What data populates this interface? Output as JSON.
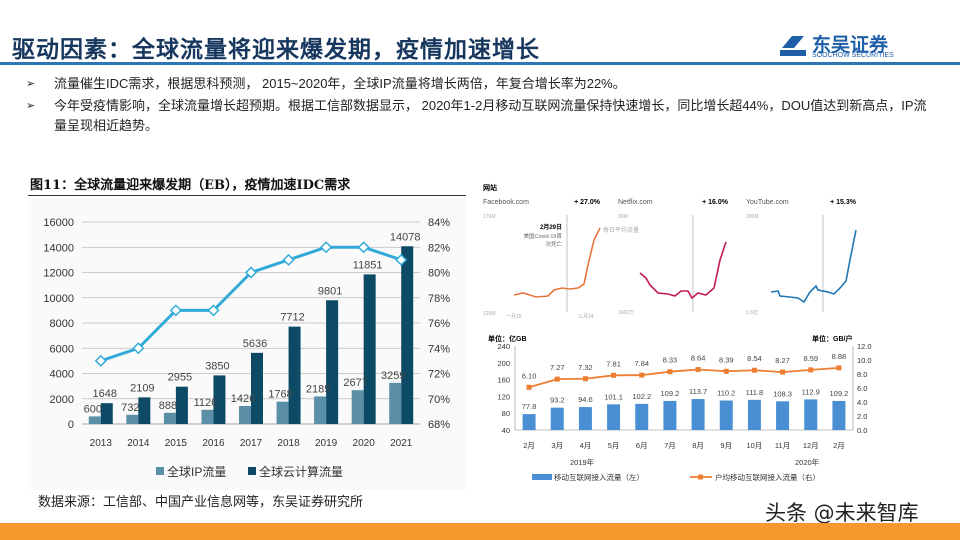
{
  "header": {
    "title": "驱动因素：全球流量将迎来爆发期，疫情加速增长",
    "logo": {
      "cn": "东吴证券",
      "en": "SOOCHOW SECURITIES",
      "mark": "SCS"
    }
  },
  "bullets": [
    {
      "icon": "arrow-bullet-icon",
      "text": "流量催生IDC需求，根据思科预测， 2015~2020年，全球IP流量将增长两倍，年复合增长率为22%。"
    },
    {
      "icon": "arrow-bullet-icon",
      "text": "今年受疫情影响，全球流量增长超预期。根据工信部数据显示， 2020年1-2月移动互联网流量保持快速增长，同比增长超44%，DOU值达到新高点，IP流量呈现相近趋势。"
    }
  ],
  "figure_caption": "图11：全球流量迎来爆发期（EB），疫情加速IDC需求",
  "source": "数据来源：工信部、中国产业信息网等，东吴证券研究所",
  "watermark": "头条 @未来智库",
  "colors": {
    "title": "#17375e",
    "rule": "#2e75b6",
    "footer": "#f7982f",
    "ip": "#5b8fa8",
    "cloud": "#0d4a66",
    "share": "#30a9d8",
    "mobile_bar": "#4a8fd4",
    "dou_line": "#ed7d31"
  },
  "chart_data": [
    {
      "type": "bar",
      "categories": [
        "2013",
        "2014",
        "2015",
        "2016",
        "2017",
        "2018",
        "2019",
        "2020",
        "2021"
      ],
      "series": [
        {
          "name": "全球IP流量",
          "type": "bar",
          "axis": "left",
          "values": [
            600,
            732,
            888,
            1126,
            1426,
            1768,
            2185,
            2677,
            3259
          ]
        },
        {
          "name": "全球云计算流量",
          "type": "bar",
          "axis": "left",
          "values": [
            1648,
            2109,
            2955,
            3850,
            5636,
            7712,
            9801,
            11851,
            14078
          ]
        },
        {
          "type": "line",
          "axis": "right",
          "values": [
            73,
            74,
            77,
            77,
            80,
            81,
            82,
            82,
            81
          ]
        }
      ],
      "ylim": [
        0,
        16000
      ],
      "yticks": [
        "0",
        "2000",
        "4000",
        "6000",
        "8000",
        "10000",
        "12000",
        "14000",
        "16000"
      ],
      "y2lim": [
        68,
        84
      ],
      "y2ticks": [
        "68%",
        "70%",
        "72%",
        "74%",
        "76%",
        "78%",
        "80%",
        "82%",
        "84%"
      ],
      "grid": true,
      "legend": "bottom"
    },
    {
      "type": "line",
      "title": "网站",
      "panels": [
        {
          "site": "Facebook.com",
          "change": "+ 27.0%",
          "ymax": "170M",
          "ymin": "120M",
          "xstart": "一月15",
          "xend": "三月24",
          "annotation_date": "2月29日",
          "annotation_text": [
            "美国Covid-19首",
            "次死亡"
          ],
          "series_label": "每日平均流量"
        },
        {
          "site": "Netflix.com",
          "change": "+ 16.0%",
          "ymax": "26M",
          "ymin": "1600万"
        },
        {
          "site": "YouTube.com",
          "change": "+ 15.3%",
          "ymax": "200M",
          "ymin": "1.6亿"
        }
      ]
    },
    {
      "type": "bar",
      "categories": [
        "2月",
        "3月",
        "4月",
        "5月",
        "6月",
        "7月",
        "8月",
        "9月",
        "10月",
        "11月",
        "12月",
        "2月"
      ],
      "year_labels": [
        "2019年",
        "2020年"
      ],
      "ylabel": "单位：亿GB",
      "y2label": "单位：GB/户",
      "series": [
        {
          "name": "移动互联网接入流量（左）",
          "type": "bar",
          "axis": "left",
          "values": [
            77.8,
            93.2,
            94.6,
            101.1,
            102.2,
            109.2,
            113.7,
            110.2,
            111.8,
            108.3,
            112.9,
            109.2
          ]
        },
        {
          "name": "户均移动互联网接入流量（右）",
          "type": "line",
          "axis": "right",
          "values": [
            6.1,
            7.27,
            7.32,
            7.81,
            7.84,
            8.33,
            8.64,
            8.39,
            8.54,
            8.27,
            8.59,
            8.88
          ]
        }
      ],
      "ylim": [
        40,
        240
      ],
      "yticks": [
        "40",
        "80",
        "120",
        "160",
        "200",
        "240"
      ],
      "y2lim": [
        0,
        12
      ],
      "y2ticks": [
        "0.0",
        "2.0",
        "4.0",
        "6.0",
        "8.0",
        "10.0",
        "12.0"
      ],
      "legend": "bottom"
    }
  ]
}
